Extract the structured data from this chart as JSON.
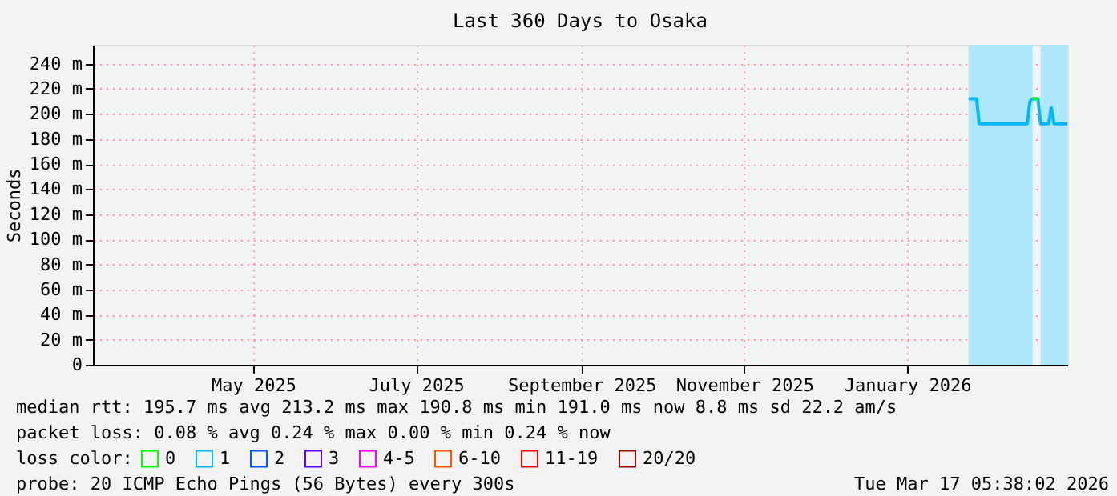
{
  "chart_data": {
    "type": "line",
    "title": "Last 360 Days to Osaka",
    "ylabel": "Seconds",
    "xlim": [
      "2025-03-17",
      "2026-03-17"
    ],
    "xticks": [
      {
        "value": "2025-05-16",
        "label": "May 2025"
      },
      {
        "value": "2025-07-16",
        "label": "July 2025"
      },
      {
        "value": "2025-09-16",
        "label": "September 2025"
      },
      {
        "value": "2025-11-16",
        "label": "November 2025"
      },
      {
        "value": "2026-01-16",
        "label": "January 2026"
      }
    ],
    "ylim": [
      0,
      255
    ],
    "yticks": [
      0,
      {
        "value": 20,
        "label": "20 m"
      },
      {
        "value": 40,
        "label": "40 m"
      },
      {
        "value": 60,
        "label": "60 m"
      },
      {
        "value": 80,
        "label": "80 m"
      },
      {
        "value": 100,
        "label": "100 m"
      },
      {
        "value": 120,
        "label": "120 m"
      },
      {
        "value": 140,
        "label": "140 m"
      },
      {
        "value": 160,
        "label": "160 m"
      },
      {
        "value": 180,
        "label": "180 m"
      },
      {
        "value": 200,
        "label": "200 m"
      },
      {
        "value": 220,
        "label": "220 m"
      },
      {
        "value": 240,
        "label": "240 m"
      }
    ],
    "grid": true,
    "legend": "bottom",
    "legend_title": "loss color:",
    "line_style": "solid",
    "series": [
      {
        "name": "0",
        "color": "#00ff00",
        "x": [
          "2026-03-04",
          "2026-03-06"
        ],
        "values": [
          212,
          212
        ]
      },
      {
        "name": "1",
        "color": "#00b8ff",
        "x": [
          "2026-02-08",
          "2026-02-11",
          "2026-02-12",
          "2026-03-02",
          "2026-03-03",
          "2026-03-04",
          "2026-03-06",
          "2026-03-07",
          "2026-03-10",
          "2026-03-11",
          "2026-03-12",
          "2026-03-17"
        ],
        "values": [
          212,
          212,
          192,
          192,
          210,
          212,
          212,
          192,
          192,
          205,
          192,
          192
        ]
      },
      {
        "name": "2",
        "color": "#0059ff"
      },
      {
        "name": "3",
        "color": "#5e00ff"
      },
      {
        "name": "4-5",
        "color": "#ff00ff"
      },
      {
        "name": "6-10",
        "color": "#ff5500"
      },
      {
        "name": "11-19",
        "color": "#ff0000"
      },
      {
        "name": "20/20",
        "color": "#a10000"
      }
    ],
    "bands": [
      {
        "axis": "x",
        "from": "2026-02-08",
        "to": "2026-03-04",
        "color": "#aee6fb"
      },
      {
        "axis": "x",
        "from": "2026-03-07",
        "to": "2026-03-17",
        "color": "#aee6fb"
      }
    ],
    "annotations": [
      "median rtt:  195.7 ms avg  213.2 ms max  190.8 ms min  191.0 ms now  8.8 ms sd  22.2   am/s",
      "packet loss: 0.08 % avg  0.24 % max  0.00 % min  0.24 % now",
      "probe:       20 ICMP Echo Pings (56 Bytes) every 300s",
      "Tue Mar 17 05:38:02 2026"
    ]
  }
}
